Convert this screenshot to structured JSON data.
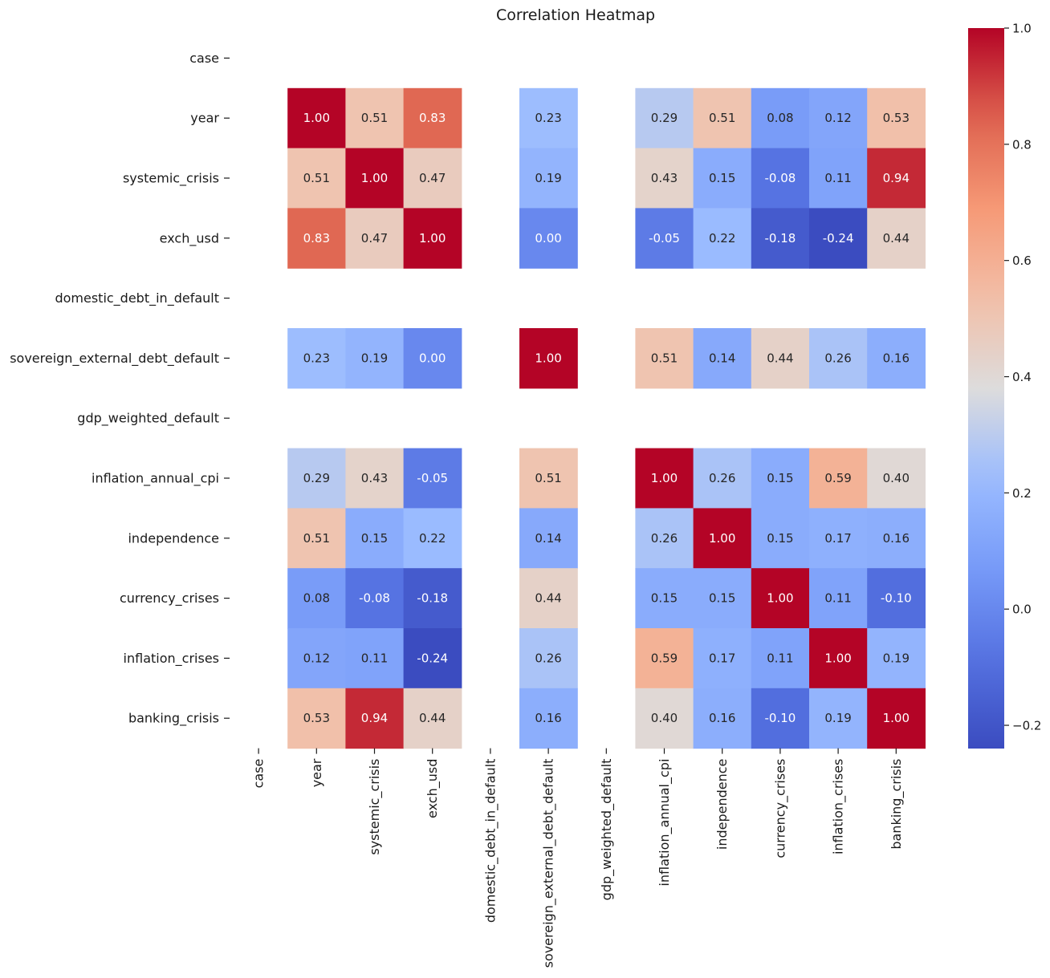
{
  "chart_data": {
    "type": "heatmap",
    "title": "Correlation Heatmap",
    "colormap": "coolwarm",
    "annotation_format": "0.00",
    "labels": [
      "case",
      "year",
      "systemic_crisis",
      "exch_usd",
      "domestic_debt_in_default",
      "sovereign_external_debt_default",
      "gdp_weighted_default",
      "inflation_annual_cpi",
      "independence",
      "currency_crises",
      "inflation_crises",
      "banking_crisis"
    ],
    "matrix": [
      [
        null,
        null,
        null,
        null,
        null,
        null,
        null,
        null,
        null,
        null,
        null,
        null
      ],
      [
        null,
        1.0,
        0.51,
        0.83,
        null,
        0.23,
        null,
        0.29,
        0.51,
        0.08,
        0.12,
        0.53
      ],
      [
        null,
        0.51,
        1.0,
        0.47,
        null,
        0.19,
        null,
        0.43,
        0.15,
        -0.08,
        0.11,
        0.94
      ],
      [
        null,
        0.83,
        0.47,
        1.0,
        null,
        0.0,
        null,
        -0.05,
        0.22,
        -0.18,
        -0.24,
        0.44
      ],
      [
        null,
        null,
        null,
        null,
        null,
        null,
        null,
        null,
        null,
        null,
        null,
        null
      ],
      [
        null,
        0.23,
        0.19,
        0.0,
        null,
        1.0,
        null,
        0.51,
        0.14,
        0.44,
        0.26,
        0.16
      ],
      [
        null,
        null,
        null,
        null,
        null,
        null,
        null,
        null,
        null,
        null,
        null,
        null
      ],
      [
        null,
        0.29,
        0.43,
        -0.05,
        null,
        0.51,
        null,
        1.0,
        0.26,
        0.15,
        0.59,
        0.4
      ],
      [
        null,
        0.51,
        0.15,
        0.22,
        null,
        0.14,
        null,
        0.26,
        1.0,
        0.15,
        0.17,
        0.16
      ],
      [
        null,
        0.08,
        -0.08,
        -0.18,
        null,
        0.44,
        null,
        0.15,
        0.15,
        1.0,
        0.11,
        -0.1
      ],
      [
        null,
        0.12,
        0.11,
        -0.24,
        null,
        0.26,
        null,
        0.59,
        0.17,
        0.11,
        1.0,
        0.19
      ],
      [
        null,
        0.53,
        0.94,
        0.44,
        null,
        0.16,
        null,
        0.4,
        0.16,
        -0.1,
        0.19,
        1.0
      ]
    ],
    "colorbar": {
      "min": -0.24,
      "max": 1.0,
      "ticks": [
        1.0,
        0.8,
        0.6,
        0.4,
        0.2,
        0.0,
        -0.2
      ],
      "tick_labels": [
        "1.0",
        "0.8",
        "0.6",
        "0.4",
        "0.2",
        "0.0",
        "−0.2"
      ]
    }
  }
}
